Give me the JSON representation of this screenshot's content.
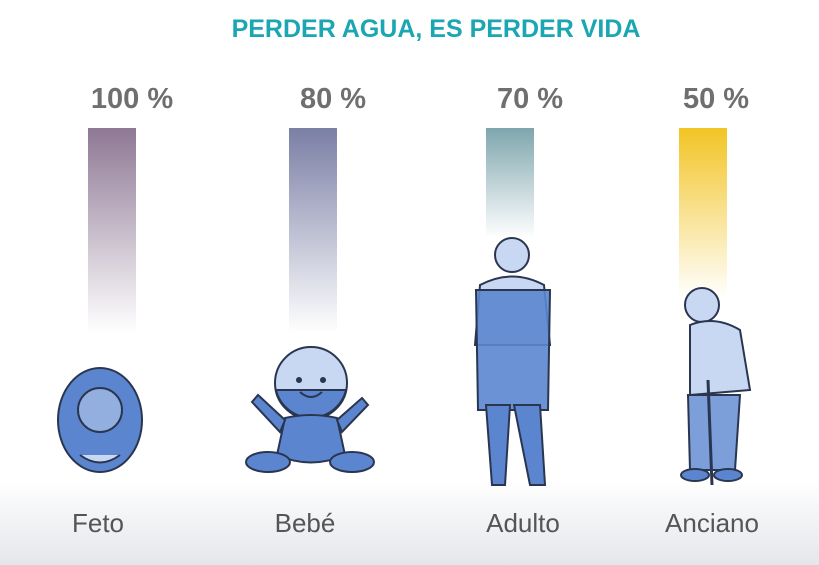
{
  "title": "PERDER AGUA, ES PERDER VIDA",
  "items": [
    {
      "percent": "100 %",
      "label": "Feto"
    },
    {
      "percent": "80 %",
      "label": "Bebé"
    },
    {
      "percent": "70 %",
      "label": "Adulto"
    },
    {
      "percent": "50 %",
      "label": "Anciano"
    }
  ]
}
